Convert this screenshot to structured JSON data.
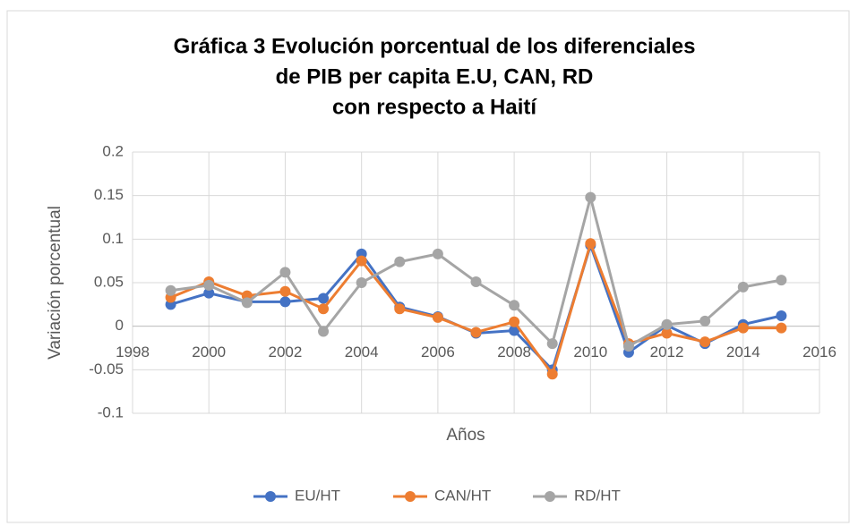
{
  "chart_data": {
    "type": "line",
    "title": [
      "Gráfica 3 Evolución porcentual de los diferenciales",
      "de PIB per capita E.U, CAN, RD",
      "con respecto a Haití"
    ],
    "x_label": "Años",
    "y_label": "Variación porcentual",
    "x": [
      1999,
      2000,
      2001,
      2002,
      2003,
      2004,
      2005,
      2006,
      2007,
      2008,
      2009,
      2010,
      2011,
      2012,
      2013,
      2014,
      2015
    ],
    "series": [
      {
        "name": "EU/HT",
        "color": "#4472c4",
        "values": [
          0.025,
          0.038,
          0.028,
          0.028,
          0.032,
          0.083,
          0.022,
          0.011,
          -0.008,
          -0.005,
          -0.05,
          0.093,
          -0.03,
          0.001,
          -0.02,
          0.002,
          0.012
        ]
      },
      {
        "name": "CAN/HT",
        "color": "#ed7d31",
        "values": [
          0.033,
          0.051,
          0.035,
          0.04,
          0.02,
          0.075,
          0.02,
          0.01,
          -0.007,
          0.005,
          -0.055,
          0.095,
          -0.02,
          -0.008,
          -0.018,
          -0.002,
          -0.002
        ]
      },
      {
        "name": "RD/HT",
        "color": "#a5a5a5",
        "values": [
          0.041,
          0.047,
          0.027,
          0.062,
          -0.006,
          0.05,
          0.074,
          0.083,
          0.051,
          0.024,
          -0.02,
          0.148,
          -0.023,
          0.002,
          0.006,
          0.045,
          0.053
        ]
      }
    ],
    "xlim": [
      1998,
      2016
    ],
    "xticks": [
      1998,
      2000,
      2002,
      2004,
      2006,
      2008,
      2010,
      2012,
      2014,
      2016
    ],
    "ylim": [
      -0.1,
      0.2
    ],
    "yticks": [
      -0.1,
      -0.05,
      0,
      0.05,
      0.1,
      0.15,
      0.2
    ],
    "grid": true,
    "legend": "bottom"
  }
}
